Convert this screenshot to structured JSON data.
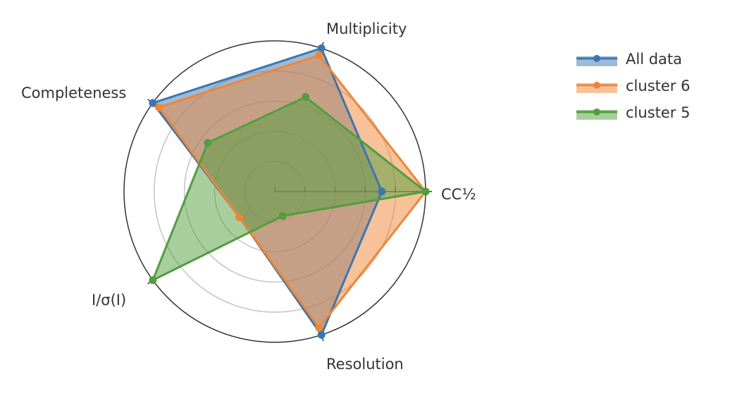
{
  "chart_data": {
    "type": "radar",
    "axes": [
      "CC½",
      "Multiplicity",
      "Completeness",
      "I/σ(I)",
      "Resolution"
    ],
    "range": [
      0,
      1
    ],
    "radial_gridlines": [
      0.2,
      0.4,
      0.6,
      0.8
    ],
    "radial_ticks": [
      0.2,
      0.4,
      0.6,
      0.8
    ],
    "grid": true,
    "legend_position": "top-right",
    "series": [
      {
        "name": "All data",
        "color": "#3b76af",
        "values": [
          0.71,
          1.0,
          1.0,
          0.29,
          1.0
        ]
      },
      {
        "name": "cluster 6",
        "color": "#ef8636",
        "values": [
          1.0,
          0.95,
          0.95,
          0.29,
          0.95
        ]
      },
      {
        "name": "cluster 5",
        "color": "#519e3e",
        "values": [
          1.0,
          0.66,
          0.55,
          1.0,
          0.17
        ]
      }
    ]
  }
}
